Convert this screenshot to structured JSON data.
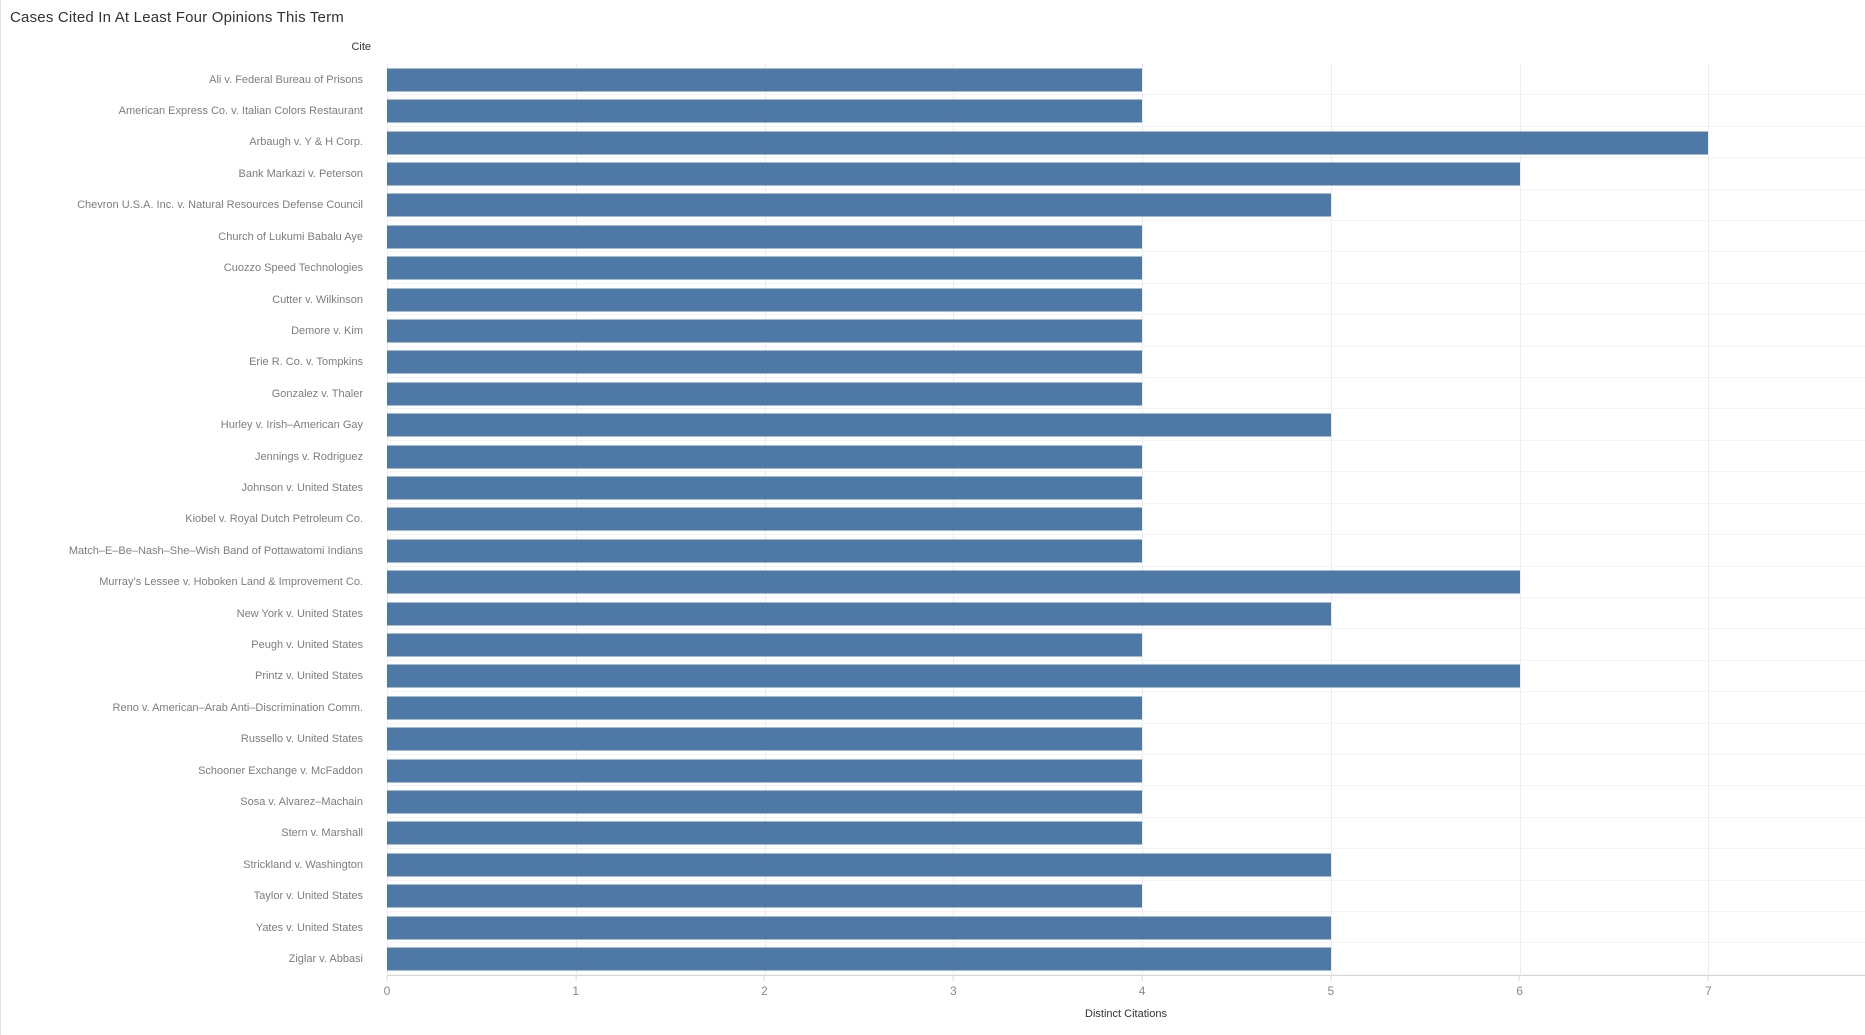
{
  "title": "Cases Cited In At Least Four Opinions This Term",
  "chart_data": {
    "type": "bar",
    "orientation": "horizontal",
    "row_field_label": "Cite",
    "xlabel": "Distinct Citations",
    "x_ticks": [
      0,
      1,
      2,
      3,
      4,
      5,
      6,
      7
    ],
    "xlim": [
      0,
      7.83
    ],
    "grid": true,
    "bar_color": "#4e79a7",
    "categories": [
      "Ali v. Federal Bureau of Prisons",
      "American Express Co. v. Italian Colors Restaurant",
      "Arbaugh v. Y & H Corp.",
      "Bank Markazi v. Peterson",
      "Chevron U.S.A. Inc. v. Natural Resources Defense Council",
      "Church of Lukumi Babalu Aye",
      "Cuozzo Speed Technologies",
      "Cutter v. Wilkinson",
      "Demore v. Kim",
      "Erie R. Co. v. Tompkins",
      "Gonzalez v. Thaler",
      "Hurley v. Irish–American Gay",
      "Jennings v. Rodriguez",
      "Johnson v. United States",
      "Kiobel v. Royal Dutch Petroleum Co.",
      "Match–E–Be–Nash–She–Wish Band of Pottawatomi Indians",
      "Murray’s Lessee v. Hoboken Land & Improvement Co.",
      "New York v. United States",
      "Peugh v. United States",
      "Printz v. United States",
      "Reno v. American–Arab Anti–Discrimination Comm.",
      "Russello v. United States",
      "Schooner Exchange v. McFaddon",
      "Sosa v. Alvarez–Machain",
      "Stern v. Marshall",
      "Strickland v. Washington",
      "Taylor v. United States",
      "Yates v. United States",
      "Ziglar v. Abbasi"
    ],
    "values": [
      4,
      4,
      7,
      6,
      5,
      4,
      4,
      4,
      4,
      4,
      4,
      5,
      4,
      4,
      4,
      4,
      6,
      5,
      4,
      6,
      4,
      4,
      4,
      4,
      4,
      5,
      4,
      5,
      5
    ]
  }
}
